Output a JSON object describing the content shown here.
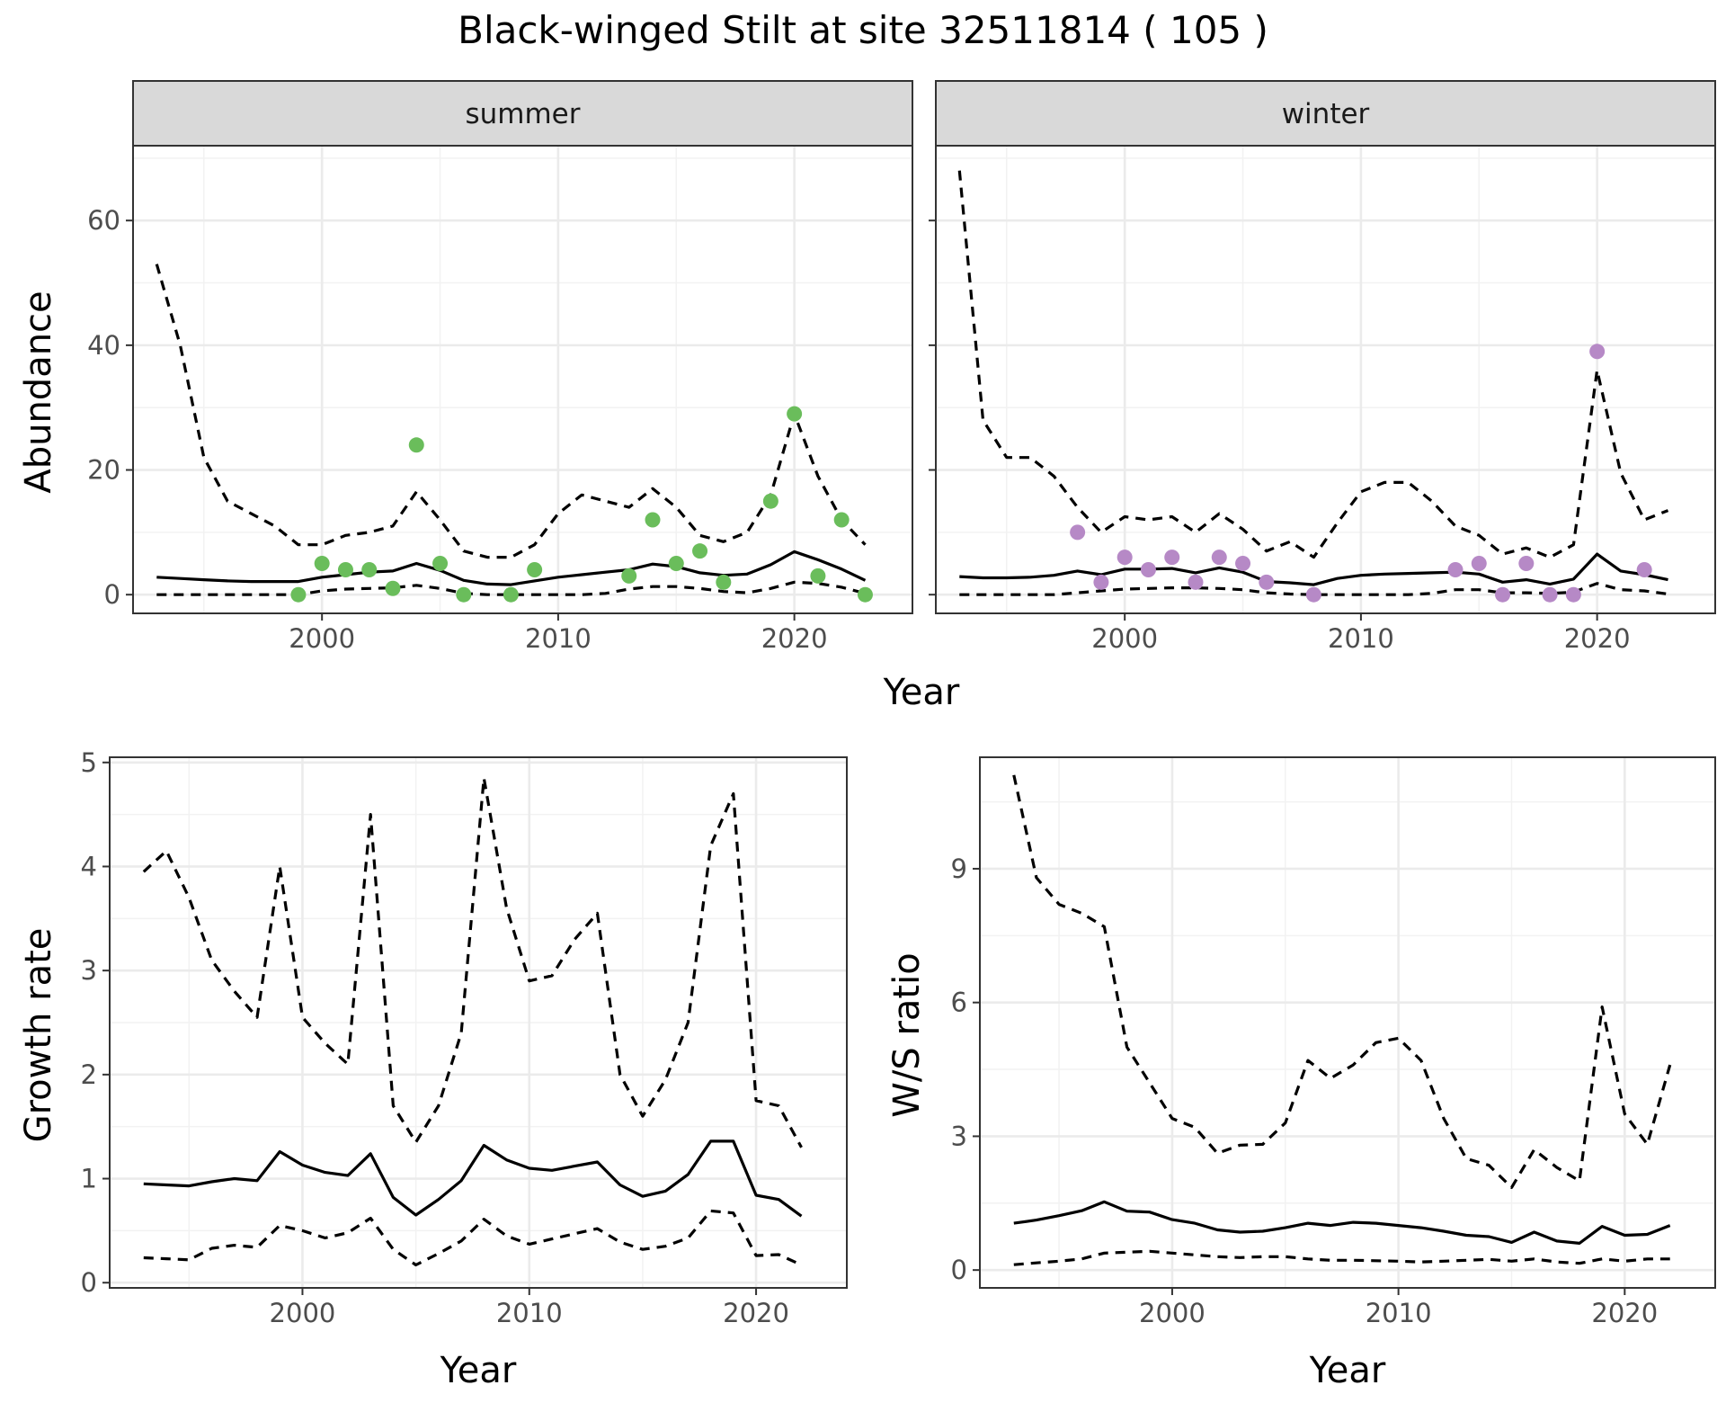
{
  "figure": {
    "title": "Black-winged Stilt at site 32511814 ( 105 )"
  },
  "chart_data": [
    {
      "type": "line",
      "panel": "summer",
      "facet_label": "summer",
      "xlabel": "",
      "ylabel": "Abundance",
      "xlim": [
        1992,
        2025
      ],
      "ylim": [
        -3,
        72
      ],
      "xticks": [
        2000,
        2010,
        2020
      ],
      "yticks": [
        0,
        20,
        40,
        60
      ],
      "grid": true,
      "series": [
        {
          "style": "solid",
          "x": [
            1993,
            1994,
            1995,
            1996,
            1997,
            1998,
            1999,
            2000,
            2001,
            2002,
            2003,
            2004,
            2005,
            2006,
            2007,
            2008,
            2009,
            2010,
            2011,
            2012,
            2013,
            2014,
            2015,
            2016,
            2017,
            2018,
            2019,
            2020,
            2021,
            2022,
            2023
          ],
          "y": [
            2.8,
            2.6,
            2.4,
            2.2,
            2.1,
            2.1,
            2.1,
            2.8,
            3.2,
            3.6,
            3.8,
            5.0,
            3.9,
            2.3,
            1.7,
            1.6,
            2.2,
            2.8,
            3.2,
            3.6,
            4.0,
            4.9,
            4.5,
            3.5,
            3.1,
            3.3,
            4.8,
            6.9,
            5.6,
            4.1,
            2.3
          ]
        },
        {
          "style": "dashed",
          "x": [
            1993,
            1994,
            1995,
            1996,
            1997,
            1998,
            1999,
            2000,
            2001,
            2002,
            2003,
            2004,
            2005,
            2006,
            2007,
            2008,
            2009,
            2010,
            2011,
            2012,
            2013,
            2014,
            2015,
            2016,
            2017,
            2018,
            2019,
            2020,
            2021,
            2022,
            2023
          ],
          "y": [
            53,
            40,
            22,
            15,
            13,
            11,
            8,
            8,
            9.5,
            10,
            11,
            16.5,
            12,
            7,
            6,
            6,
            8,
            13,
            16,
            15,
            14,
            17,
            14,
            9.5,
            8.5,
            10,
            16,
            29,
            19,
            12,
            8
          ]
        },
        {
          "style": "dashed",
          "x": [
            1993,
            1994,
            1995,
            1996,
            1997,
            1998,
            1999,
            2000,
            2001,
            2002,
            2003,
            2004,
            2005,
            2006,
            2007,
            2008,
            2009,
            2010,
            2011,
            2012,
            2013,
            2014,
            2015,
            2016,
            2017,
            2018,
            2019,
            2020,
            2021,
            2022,
            2023
          ],
          "y": [
            0,
            0,
            0,
            0,
            0,
            0,
            0,
            0.6,
            0.9,
            1.0,
            1.1,
            1.5,
            1.0,
            0.2,
            0,
            0,
            0,
            0,
            0,
            0.2,
            0.9,
            1.3,
            1.3,
            1.0,
            0.5,
            0.3,
            1.0,
            2.0,
            1.8,
            1.2,
            0.2
          ]
        },
        {
          "style": "points",
          "color": "#6abd5b",
          "x": [
            1999,
            2000,
            2001,
            2002,
            2003,
            2004,
            2005,
            2006,
            2008,
            2009,
            2013,
            2014,
            2015,
            2016,
            2017,
            2019,
            2020,
            2021,
            2022,
            2023
          ],
          "y": [
            0,
            5,
            4,
            4,
            1,
            24,
            5,
            0,
            0,
            4,
            3,
            12,
            5,
            7,
            2,
            15,
            29,
            3,
            12,
            0
          ]
        }
      ]
    },
    {
      "type": "line",
      "panel": "winter",
      "facet_label": "winter",
      "xlabel": "",
      "ylabel": "",
      "xlim": [
        1992,
        2025
      ],
      "ylim": [
        -3,
        72
      ],
      "xticks": [
        2000,
        2010,
        2020
      ],
      "yticks": [
        0,
        20,
        40,
        60
      ],
      "grid": true,
      "series": [
        {
          "style": "solid",
          "x": [
            1993,
            1994,
            1995,
            1996,
            1997,
            1998,
            1999,
            2000,
            2001,
            2002,
            2003,
            2004,
            2005,
            2006,
            2007,
            2008,
            2009,
            2010,
            2011,
            2012,
            2013,
            2014,
            2015,
            2016,
            2017,
            2018,
            2019,
            2020,
            2021,
            2022,
            2023
          ],
          "y": [
            2.9,
            2.7,
            2.7,
            2.8,
            3.1,
            3.8,
            3.2,
            4.1,
            4.1,
            4.2,
            3.5,
            4.3,
            3.6,
            2.1,
            1.9,
            1.6,
            2.6,
            3.1,
            3.3,
            3.4,
            3.5,
            3.6,
            3.3,
            2.0,
            2.4,
            1.7,
            2.5,
            6.5,
            3.8,
            3.2,
            2.4
          ]
        },
        {
          "style": "dashed",
          "x": [
            1993,
            1994,
            1995,
            1996,
            1997,
            1998,
            1999,
            2000,
            2001,
            2002,
            2003,
            2004,
            2005,
            2006,
            2007,
            2008,
            2009,
            2010,
            2011,
            2012,
            2013,
            2014,
            2015,
            2016,
            2017,
            2018,
            2019,
            2020,
            2021,
            2022,
            2023
          ],
          "y": [
            68,
            28,
            22,
            22,
            19,
            14,
            10,
            12.5,
            12,
            12.5,
            10,
            13,
            10.5,
            7,
            8.5,
            6,
            11.5,
            16.5,
            18,
            18,
            15,
            11,
            9.5,
            6.5,
            7.5,
            6,
            8,
            36,
            19.5,
            12,
            13.5
          ]
        },
        {
          "style": "dashed",
          "x": [
            1993,
            1994,
            1995,
            1996,
            1997,
            1998,
            1999,
            2000,
            2001,
            2002,
            2003,
            2004,
            2005,
            2006,
            2007,
            2008,
            2009,
            2010,
            2011,
            2012,
            2013,
            2014,
            2015,
            2016,
            2017,
            2018,
            2019,
            2020,
            2021,
            2022,
            2023
          ],
          "y": [
            0,
            0,
            0,
            0,
            0,
            0.3,
            0.6,
            0.9,
            1.0,
            1.1,
            1.1,
            1.0,
            0.8,
            0.3,
            0.1,
            0,
            0,
            0,
            0,
            0,
            0.2,
            0.8,
            0.8,
            0.3,
            0.3,
            0.2,
            0.4,
            1.8,
            0.8,
            0.6,
            0.1
          ]
        },
        {
          "style": "points",
          "color": "#b689c6",
          "x": [
            1998,
            1999,
            2000,
            2001,
            2002,
            2003,
            2004,
            2005,
            2006,
            2008,
            2014,
            2015,
            2016,
            2017,
            2018,
            2019,
            2020,
            2022
          ],
          "y": [
            10,
            2,
            6,
            4,
            6,
            2,
            6,
            5,
            2,
            0,
            4,
            5,
            0,
            5,
            0,
            0,
            39,
            4
          ]
        }
      ]
    },
    {
      "type": "line",
      "panel": "growth",
      "xlabel": "Year",
      "ylabel": "Growth rate",
      "xlim": [
        1991.5,
        2024
      ],
      "ylim": [
        -0.05,
        5.05
      ],
      "xticks": [
        2000,
        2010,
        2020
      ],
      "yticks": [
        0,
        1,
        2,
        3,
        4,
        5
      ],
      "grid": true,
      "series": [
        {
          "style": "solid",
          "x": [
            1993,
            1994,
            1995,
            1996,
            1997,
            1998,
            1999,
            2000,
            2001,
            2002,
            2003,
            2004,
            2005,
            2006,
            2007,
            2008,
            2009,
            2010,
            2011,
            2012,
            2013,
            2014,
            2015,
            2016,
            2017,
            2018,
            2019,
            2020,
            2021,
            2022
          ],
          "y": [
            0.95,
            0.94,
            0.93,
            0.97,
            1.0,
            0.98,
            1.26,
            1.13,
            1.06,
            1.03,
            1.24,
            0.82,
            0.65,
            0.8,
            0.98,
            1.32,
            1.18,
            1.1,
            1.08,
            1.12,
            1.16,
            0.94,
            0.83,
            0.88,
            1.04,
            1.36,
            1.36,
            0.84,
            0.8,
            0.64
          ]
        },
        {
          "style": "dashed",
          "x": [
            1993,
            1994,
            1995,
            1996,
            1997,
            1998,
            1999,
            2000,
            2001,
            2002,
            2003,
            2004,
            2005,
            2006,
            2007,
            2008,
            2009,
            2010,
            2011,
            2012,
            2013,
            2014,
            2015,
            2016,
            2017,
            2018,
            2019,
            2020,
            2021,
            2022
          ],
          "y": [
            3.95,
            4.15,
            3.7,
            3.1,
            2.8,
            2.55,
            4.0,
            2.55,
            2.3,
            2.1,
            4.5,
            1.7,
            1.35,
            1.7,
            2.4,
            4.85,
            3.6,
            2.9,
            2.95,
            3.3,
            3.55,
            2.0,
            1.6,
            1.95,
            2.5,
            4.2,
            4.7,
            1.75,
            1.7,
            1.3
          ]
        },
        {
          "style": "dashed",
          "x": [
            1993,
            1994,
            1995,
            1996,
            1997,
            1998,
            1999,
            2000,
            2001,
            2002,
            2003,
            2004,
            2005,
            2006,
            2007,
            2008,
            2009,
            2010,
            2011,
            2012,
            2013,
            2014,
            2015,
            2016,
            2017,
            2018,
            2019,
            2020,
            2021,
            2022
          ],
          "y": [
            0.24,
            0.23,
            0.22,
            0.33,
            0.36,
            0.34,
            0.55,
            0.5,
            0.43,
            0.48,
            0.62,
            0.32,
            0.17,
            0.28,
            0.4,
            0.61,
            0.45,
            0.37,
            0.42,
            0.47,
            0.52,
            0.39,
            0.32,
            0.35,
            0.43,
            0.69,
            0.67,
            0.26,
            0.27,
            0.17
          ]
        }
      ]
    },
    {
      "type": "line",
      "panel": "ratio",
      "xlabel": "Year",
      "ylabel": "W/S ratio",
      "xlim": [
        1991.5,
        2024
      ],
      "ylim": [
        -0.4,
        11.5
      ],
      "xticks": [
        2000,
        2010,
        2020
      ],
      "yticks": [
        0,
        3,
        6,
        9
      ],
      "grid": true,
      "series": [
        {
          "style": "solid",
          "x": [
            1993,
            1994,
            1995,
            1996,
            1997,
            1998,
            1999,
            2000,
            2001,
            2002,
            2003,
            2004,
            2005,
            2006,
            2007,
            2008,
            2009,
            2010,
            2011,
            2012,
            2013,
            2014,
            2015,
            2016,
            2017,
            2018,
            2019,
            2020,
            2021,
            2022
          ],
          "y": [
            1.05,
            1.12,
            1.22,
            1.33,
            1.53,
            1.32,
            1.3,
            1.13,
            1.05,
            0.9,
            0.85,
            0.87,
            0.95,
            1.05,
            1.0,
            1.07,
            1.05,
            1.0,
            0.95,
            0.87,
            0.78,
            0.75,
            0.62,
            0.85,
            0.65,
            0.6,
            0.98,
            0.78,
            0.8,
            1.0
          ]
        },
        {
          "style": "dashed",
          "x": [
            1993,
            1994,
            1995,
            1996,
            1997,
            1998,
            1999,
            2000,
            2001,
            2002,
            2003,
            2004,
            2005,
            2006,
            2007,
            2008,
            2009,
            2010,
            2011,
            2012,
            2013,
            2014,
            2015,
            2016,
            2017,
            2018,
            2019,
            2020,
            2021,
            2022
          ],
          "y": [
            11.1,
            8.8,
            8.2,
            8.0,
            7.7,
            5.0,
            4.2,
            3.4,
            3.2,
            2.62,
            2.8,
            2.82,
            3.3,
            4.7,
            4.3,
            4.6,
            5.1,
            5.2,
            4.7,
            3.4,
            2.5,
            2.35,
            1.85,
            2.7,
            2.3,
            2.0,
            5.9,
            3.5,
            2.82,
            4.6
          ]
        },
        {
          "style": "dashed",
          "x": [
            1993,
            1994,
            1995,
            1996,
            1997,
            1998,
            1999,
            2000,
            2001,
            2002,
            2003,
            2004,
            2005,
            2006,
            2007,
            2008,
            2009,
            2010,
            2011,
            2012,
            2013,
            2014,
            2015,
            2016,
            2017,
            2018,
            2019,
            2020,
            2021,
            2022
          ],
          "y": [
            0.12,
            0.16,
            0.2,
            0.25,
            0.38,
            0.4,
            0.42,
            0.38,
            0.34,
            0.3,
            0.28,
            0.3,
            0.3,
            0.25,
            0.22,
            0.22,
            0.21,
            0.2,
            0.18,
            0.2,
            0.22,
            0.24,
            0.2,
            0.25,
            0.18,
            0.15,
            0.25,
            0.2,
            0.25,
            0.25
          ]
        }
      ]
    }
  ]
}
